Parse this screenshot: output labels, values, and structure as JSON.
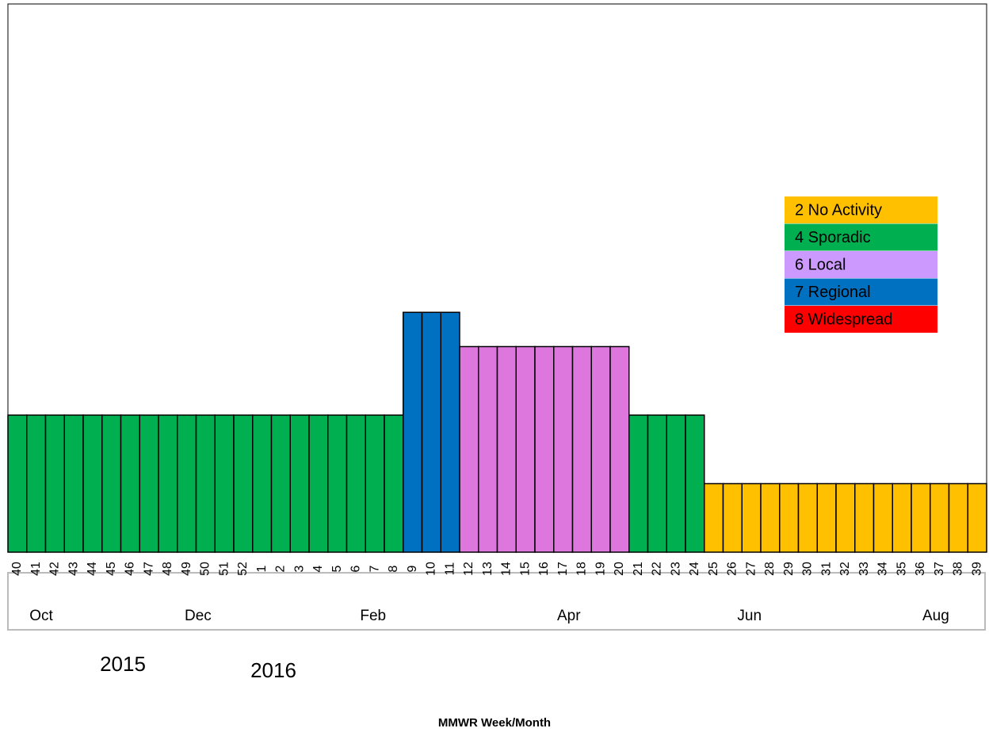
{
  "chart_data": {
    "type": "bar",
    "categories": [
      "40",
      "41",
      "42",
      "43",
      "44",
      "45",
      "46",
      "47",
      "48",
      "49",
      "50",
      "51",
      "52",
      "1",
      "2",
      "3",
      "4",
      "5",
      "6",
      "7",
      "8",
      "9",
      "10",
      "11",
      "12",
      "13",
      "14",
      "15",
      "16",
      "17",
      "18",
      "19",
      "20",
      "21",
      "22",
      "23",
      "24",
      "25",
      "26",
      "27",
      "28",
      "29",
      "30",
      "31",
      "32",
      "33",
      "34",
      "35",
      "36",
      "37",
      "38",
      "39"
    ],
    "values": [
      4,
      4,
      4,
      4,
      4,
      4,
      4,
      4,
      4,
      4,
      4,
      4,
      4,
      4,
      4,
      4,
      4,
      4,
      4,
      4,
      4,
      7,
      7,
      7,
      6,
      6,
      6,
      6,
      6,
      6,
      6,
      6,
      6,
      4,
      4,
      4,
      4,
      2,
      2,
      2,
      2,
      2,
      2,
      2,
      2,
      2,
      2,
      2,
      2,
      2,
      2,
      2
    ],
    "bar_colors": {
      "2": "#ffc000",
      "4": "#00b050",
      "6": "#dd77dd",
      "7": "#0070c0",
      "8": "#ff0000"
    },
    "ylim": [
      0,
      16
    ],
    "legend": [
      {
        "label": "2 No Activity",
        "color": "#ffc000"
      },
      {
        "label": "4 Sporadic",
        "color": "#00b050"
      },
      {
        "label": "6 Local",
        "color": "#cc99ff"
      },
      {
        "label": "7 Regional",
        "color": "#0070c0"
      },
      {
        "label": "8 Widespread",
        "color": "#ff0000"
      }
    ],
    "months": [
      "Oct",
      "Dec",
      "Feb",
      "Apr",
      "Jun",
      "Aug"
    ],
    "years": [
      "2015",
      "2016"
    ],
    "x_label": "MMWR Week/Month"
  }
}
